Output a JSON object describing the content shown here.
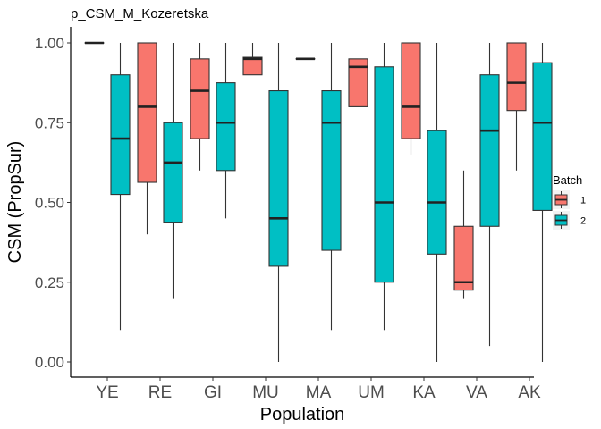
{
  "chart_data": {
    "type": "boxplot",
    "title": "p_CSM_M_Kozeretska",
    "xlabel": "Population",
    "ylabel": "CSM (PropSur)",
    "ylim": [
      0,
      1
    ],
    "yticks": [
      "0.00",
      "0.25",
      "0.50",
      "0.75",
      "1.00"
    ],
    "categories": [
      "YE",
      "RE",
      "GI",
      "MU",
      "MA",
      "UM",
      "KA",
      "VA",
      "AK"
    ],
    "legend": {
      "title": "Batch",
      "position": "right"
    },
    "grid": false,
    "series": [
      {
        "name": "1",
        "color": "#F8766D",
        "boxes": [
          {
            "min": 1.0,
            "q1": 1.0,
            "median": 1.0,
            "q3": 1.0,
            "max": 1.0
          },
          {
            "min": 0.4,
            "q1": 0.563,
            "median": 0.8,
            "q3": 1.0,
            "max": 1.0
          },
          {
            "min": 0.6,
            "q1": 0.7,
            "median": 0.85,
            "q3": 0.95,
            "max": 1.0
          },
          {
            "min": 0.9,
            "q1": 0.9,
            "median": 0.95,
            "q3": 0.955,
            "max": 1.0
          },
          {
            "min": 0.95,
            "q1": 0.95,
            "median": 0.95,
            "q3": 0.95,
            "max": 0.95
          },
          {
            "min": 0.8,
            "q1": 0.8,
            "median": 0.925,
            "q3": 0.95,
            "max": 0.95
          },
          {
            "min": 0.65,
            "q1": 0.7,
            "median": 0.8,
            "q3": 1.0,
            "max": 1.0
          },
          {
            "min": 0.2,
            "q1": 0.225,
            "median": 0.25,
            "q3": 0.425,
            "max": 0.6
          },
          {
            "min": 0.6,
            "q1": 0.788,
            "median": 0.875,
            "q3": 1.0,
            "max": 1.0
          }
        ]
      },
      {
        "name": "2",
        "color": "#00BFC4",
        "boxes": [
          {
            "min": 0.1,
            "q1": 0.525,
            "median": 0.7,
            "q3": 0.9,
            "max": 1.0
          },
          {
            "min": 0.2,
            "q1": 0.438,
            "median": 0.625,
            "q3": 0.75,
            "max": 1.0
          },
          {
            "min": 0.45,
            "q1": 0.6,
            "median": 0.75,
            "q3": 0.875,
            "max": 1.0
          },
          {
            "min": 0.0,
            "q1": 0.3,
            "median": 0.45,
            "q3": 0.85,
            "max": 1.0
          },
          {
            "min": 0.1,
            "q1": 0.35,
            "median": 0.75,
            "q3": 0.85,
            "max": 1.0
          },
          {
            "min": 0.1,
            "q1": 0.25,
            "median": 0.5,
            "q3": 0.925,
            "max": 1.0
          },
          {
            "min": 0.0,
            "q1": 0.338,
            "median": 0.5,
            "q3": 0.725,
            "max": 1.0
          },
          {
            "min": 0.05,
            "q1": 0.425,
            "median": 0.725,
            "q3": 0.9,
            "max": 1.0
          },
          {
            "min": 0.0,
            "q1": 0.475,
            "median": 0.75,
            "q3": 0.938,
            "max": 1.0
          }
        ]
      }
    ]
  }
}
